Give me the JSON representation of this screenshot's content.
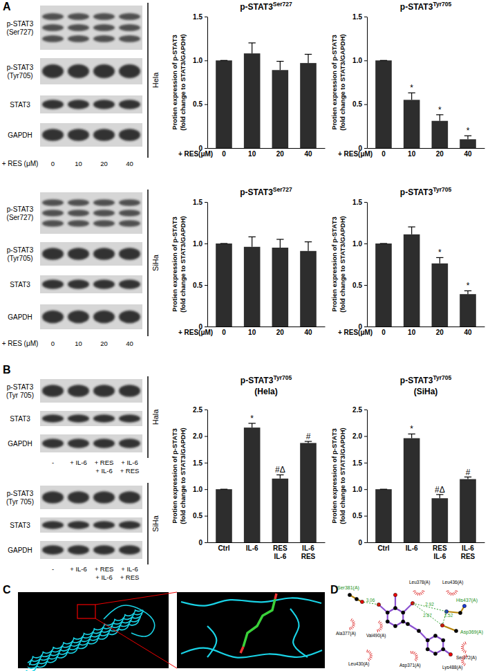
{
  "panel_labels": [
    "A",
    "B",
    "C",
    "D"
  ],
  "blots": [
    {
      "cell_line": "Hela",
      "rows": [
        "p-STAT3\n(Ser727)",
        "p-STAT3\n(Tyr705)",
        "STAT3",
        "GAPDH"
      ],
      "treatment_label": "+ RES (μM)",
      "lanes": [
        "0",
        "10",
        "20",
        "40"
      ]
    },
    {
      "cell_line": "SiHa",
      "rows": [
        "p-STAT3\n(Ser727)",
        "p-STAT3\n(Tyr705)",
        "STAT3",
        "GAPDH"
      ],
      "treatment_label": "+ RES (μM)",
      "lanes": [
        "0",
        "10",
        "20",
        "40"
      ]
    },
    {
      "cell_line": "Hala",
      "rows": [
        "p-STAT3\n(Tyr 705)",
        "STAT3",
        "GAPDH"
      ],
      "lanes": [
        "-",
        "+ IL-6",
        "+ RES\n+ IL-6",
        "+ IL-6\n+ RES"
      ]
    },
    {
      "cell_line": "SiHa",
      "rows": [
        "p-STAT3\n(Tyr 705)",
        "STAT3",
        "GAPDH"
      ],
      "lanes": [
        "-",
        "+ IL-6",
        "+ RES\n+ IL-6",
        "+ IL-6\n+ RES"
      ]
    }
  ],
  "chart_data": [
    {
      "type": "bar",
      "title": "p-STAT3",
      "subtitle": "Ser727",
      "y_label": "Protien expression of p-STAT3\n(fold change to STAT3/GAPDH)",
      "x_label": "+ RES(μM)",
      "categories": [
        "0",
        "10",
        "20",
        "40"
      ],
      "values": [
        1.0,
        1.08,
        0.89,
        0.97
      ],
      "errors": [
        0,
        0.12,
        0.1,
        0.1
      ],
      "significance": [
        null,
        null,
        null,
        null
      ],
      "color": "#2d2d2d",
      "ylim": [
        0,
        1.5
      ],
      "yticks": [
        0,
        0.5,
        {
          "value": 1,
          "label": "1.0"
        },
        1.5
      ]
    },
    {
      "type": "bar",
      "title": "p-STAT3",
      "subtitle": "Tyr705",
      "y_label": "Protien expression of p-STAT3\n(fold change to STAT3/GAPDH)",
      "x_label": "+ RES(μM)",
      "categories": [
        "0",
        "10",
        "20",
        "40"
      ],
      "values": [
        1.0,
        0.55,
        0.31,
        0.1
      ],
      "errors": [
        0,
        0.08,
        0.07,
        0.04
      ],
      "significance": [
        null,
        "*",
        "*",
        "*"
      ],
      "color": "#2d2d2d",
      "ylim": [
        0,
        1.5
      ],
      "yticks": [
        0,
        0.5,
        {
          "value": 1,
          "label": "1.0"
        },
        1.5
      ]
    },
    {
      "type": "bar",
      "title": "p-STAT3",
      "subtitle": "Ser727",
      "y_label": "Protien expression of p-STAT3\n(fold change to STAT3/GAPDH)",
      "x_label": "+ RES(μM)",
      "categories": [
        "0",
        "10",
        "20",
        "40"
      ],
      "values": [
        1.0,
        0.96,
        0.95,
        0.91
      ],
      "errors": [
        0,
        0.12,
        0.1,
        0.11
      ],
      "significance": [
        null,
        null,
        null,
        null
      ],
      "color": "#2d2d2d",
      "ylim": [
        0,
        1.5
      ],
      "yticks": [
        0,
        0.5,
        {
          "value": 1,
          "label": "1.0"
        },
        1.5
      ]
    },
    {
      "type": "bar",
      "title": "p-STAT3",
      "subtitle": "Tyr705",
      "y_label": "Protien expression of p-STAT3\n(fold change to STAT3/GAPDH)",
      "x_label": "+ RES(μM)",
      "categories": [
        "0",
        "10",
        "20",
        "40"
      ],
      "values": [
        1.0,
        1.11,
        0.76,
        0.39
      ],
      "errors": [
        0,
        0.09,
        0.07,
        0.04
      ],
      "significance": [
        null,
        null,
        "*",
        "*"
      ],
      "color": "#2d2d2d",
      "ylim": [
        0,
        1.5
      ],
      "yticks": [
        0,
        0.5,
        {
          "value": 1,
          "label": "1.0"
        },
        1.5
      ]
    },
    {
      "type": "bar",
      "title": "p-STAT3",
      "subtitle": "Tyr705",
      "annotations": [
        "(Hela)"
      ],
      "y_label": "Protien expression of p-STAT3\n(fold change to STAT3/GAPDH)",
      "categories": [
        "Ctrl",
        "IL-6",
        "RES\nIL-6",
        "IL-6\nRES"
      ],
      "values": [
        1.0,
        2.16,
        1.2,
        1.87
      ],
      "errors": [
        0,
        0.08,
        0.07,
        0.03
      ],
      "significance": [
        null,
        "*",
        "#Δ",
        "#"
      ],
      "color": "#2d2d2d",
      "ylim": [
        0,
        2.5
      ],
      "yticks": [
        0,
        0.5,
        {
          "value": 1,
          "label": "1.0"
        },
        1.5,
        {
          "value": 2,
          "label": "2.0"
        },
        2.5
      ]
    },
    {
      "type": "bar",
      "title": "p-STAT3",
      "subtitle": "Tyr705",
      "annotations": [
        "(SiHa)"
      ],
      "y_label": "Protien expression of p-STAT3\n(fold change to STAT3/GAPDH)",
      "categories": [
        "Ctrl",
        "IL-6",
        "RES\nIL-6",
        "IL-6\nRES"
      ],
      "values": [
        1.0,
        1.96,
        0.83,
        1.19
      ],
      "errors": [
        0,
        0.08,
        0.07,
        0.04
      ],
      "significance": [
        null,
        "*",
        "#Δ",
        "#"
      ],
      "color": "#2d2d2d",
      "ylim": [
        0,
        2.5
      ],
      "yticks": [
        0,
        0.5,
        {
          "value": 1,
          "label": "1.0"
        },
        1.5,
        {
          "value": 2,
          "label": "2.0"
        },
        2.5
      ]
    }
  ],
  "docking": {
    "hbond_residues": [
      "Ser381(A)",
      "His437(A)",
      "Asp369(A)"
    ],
    "hydrophobic_residues": [
      "Leu378(A)",
      "Leu436(A)",
      "Ala377(A)",
      "Val490(A)",
      "Ser372(A)",
      "Leu430(A)",
      "Asp371(A)",
      "Lys488(A)"
    ],
    "hbond_distances": [
      3.06,
      2.92,
      2.67,
      2.52
    ]
  }
}
